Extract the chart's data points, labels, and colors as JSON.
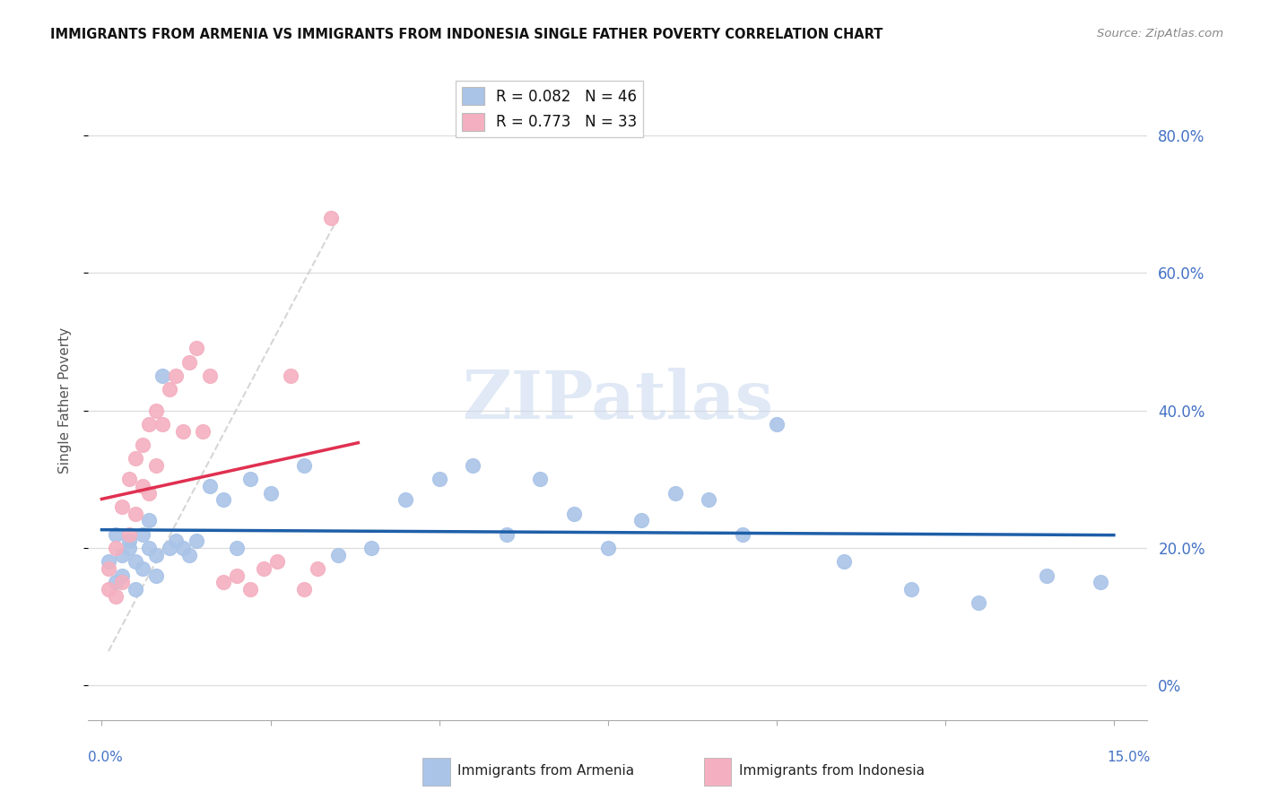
{
  "title": "IMMIGRANTS FROM ARMENIA VS IMMIGRANTS FROM INDONESIA SINGLE FATHER POVERTY CORRELATION CHART",
  "source": "Source: ZipAtlas.com",
  "ylabel": "Single Father Poverty",
  "xlim": [
    -0.002,
    0.155
  ],
  "ylim": [
    -0.05,
    0.88
  ],
  "armenia_color": "#aac4e8",
  "armenia_line_color": "#1e5fa8",
  "indonesia_color": "#f4b0c0",
  "indonesia_line_color": "#e03050",
  "right_y_ticks": [
    0.0,
    0.2,
    0.4,
    0.6,
    0.8
  ],
  "right_y_labels": [
    "0%",
    "20.0%",
    "40.0%",
    "60.0%",
    "80.0%"
  ],
  "armenia_R": 0.082,
  "armenia_N": 46,
  "indonesia_R": 0.773,
  "indonesia_N": 33,
  "armenia_x": [
    0.001,
    0.002,
    0.002,
    0.003,
    0.003,
    0.004,
    0.004,
    0.005,
    0.005,
    0.006,
    0.006,
    0.007,
    0.007,
    0.008,
    0.008,
    0.009,
    0.01,
    0.011,
    0.012,
    0.013,
    0.014,
    0.016,
    0.018,
    0.02,
    0.022,
    0.025,
    0.03,
    0.035,
    0.04,
    0.045,
    0.05,
    0.055,
    0.06,
    0.065,
    0.07,
    0.075,
    0.08,
    0.085,
    0.09,
    0.095,
    0.1,
    0.11,
    0.12,
    0.13,
    0.14,
    0.148
  ],
  "armenia_y": [
    0.18,
    0.15,
    0.22,
    0.19,
    0.16,
    0.21,
    0.2,
    0.14,
    0.18,
    0.17,
    0.22,
    0.2,
    0.24,
    0.19,
    0.16,
    0.45,
    0.2,
    0.21,
    0.2,
    0.19,
    0.21,
    0.29,
    0.27,
    0.2,
    0.3,
    0.28,
    0.32,
    0.19,
    0.2,
    0.27,
    0.3,
    0.32,
    0.22,
    0.3,
    0.25,
    0.2,
    0.24,
    0.28,
    0.27,
    0.22,
    0.38,
    0.18,
    0.14,
    0.12,
    0.16,
    0.15
  ],
  "indonesia_x": [
    0.001,
    0.001,
    0.002,
    0.002,
    0.003,
    0.003,
    0.004,
    0.004,
    0.005,
    0.005,
    0.006,
    0.006,
    0.007,
    0.007,
    0.008,
    0.008,
    0.009,
    0.01,
    0.011,
    0.012,
    0.013,
    0.014,
    0.015,
    0.016,
    0.018,
    0.02,
    0.022,
    0.024,
    0.026,
    0.028,
    0.03,
    0.032,
    0.034
  ],
  "indonesia_y": [
    0.14,
    0.17,
    0.13,
    0.2,
    0.15,
    0.26,
    0.22,
    0.3,
    0.25,
    0.33,
    0.29,
    0.35,
    0.28,
    0.38,
    0.32,
    0.4,
    0.38,
    0.43,
    0.45,
    0.37,
    0.47,
    0.49,
    0.37,
    0.45,
    0.15,
    0.16,
    0.14,
    0.17,
    0.18,
    0.45,
    0.14,
    0.17,
    0.68
  ]
}
